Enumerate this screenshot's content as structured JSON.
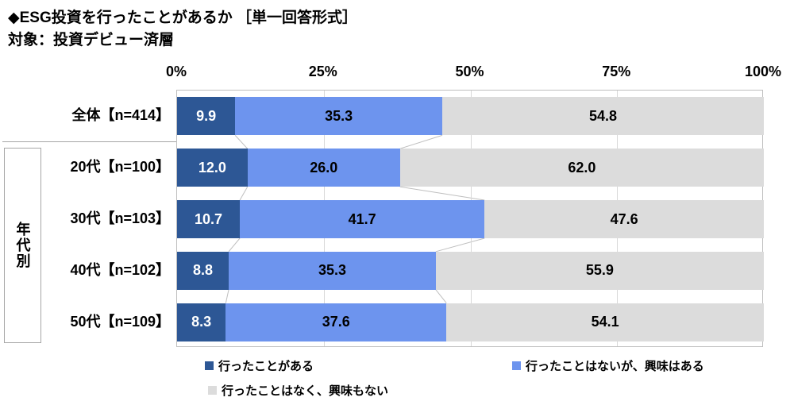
{
  "header": {
    "title": "◆ESG投資を行ったことがあるか ［単一回答形式］",
    "subtitle": "対象：投資デビュー済層"
  },
  "group": {
    "label": "年代別"
  },
  "chart_data": {
    "type": "bar",
    "orientation": "horizontal",
    "stacked": true,
    "value_suffix": "%",
    "x_axis": {
      "ticks": [
        "0%",
        "25%",
        "50%",
        "75%",
        "100%"
      ],
      "tick_pcts": [
        0,
        25,
        50,
        75,
        100
      ],
      "range": [
        0,
        100
      ],
      "gridlines_pct": [
        25,
        50,
        75
      ]
    },
    "categories": [
      "全体【n=414】",
      "20代【n=100】",
      "30代【n=103】",
      "40代【n=102】",
      "50代【n=109】"
    ],
    "series": [
      {
        "name": "行ったことがある",
        "color": "#2d5795",
        "text_color": "#ffffff",
        "values": [
          9.9,
          12.0,
          10.7,
          8.8,
          8.3
        ]
      },
      {
        "name": "行ったことはないが、興味はある",
        "color": "#6d94ee",
        "text_color": "#000000",
        "values": [
          35.3,
          26.0,
          41.7,
          35.3,
          37.6
        ]
      },
      {
        "name": "行ったことはなく、興味もない",
        "color": "#dcdcdc",
        "text_color": "#000000",
        "values": [
          54.8,
          62.0,
          47.6,
          55.9,
          54.1
        ]
      }
    ],
    "legend_position": "bottom"
  }
}
